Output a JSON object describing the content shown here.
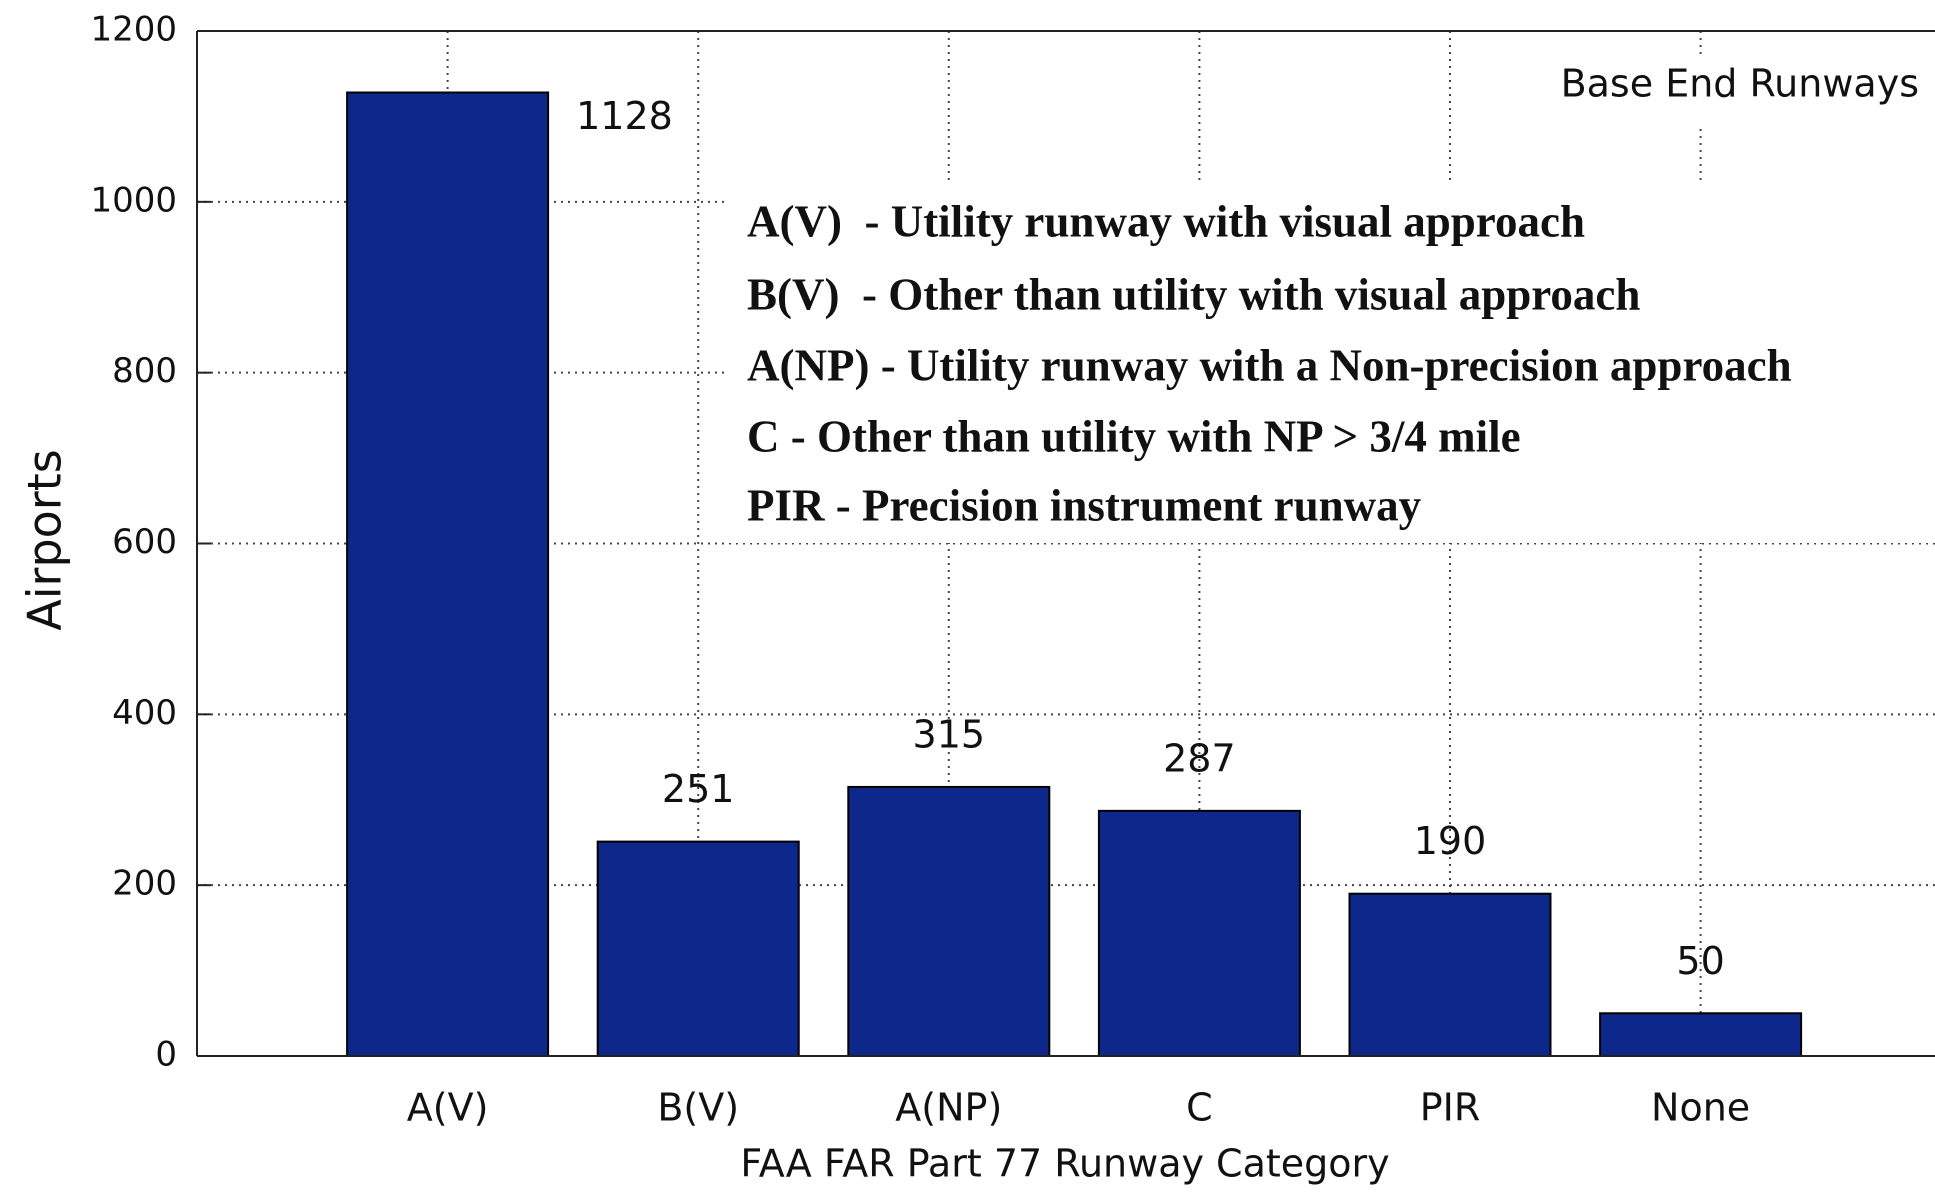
{
  "chart_data": {
    "type": "bar",
    "categories": [
      "A(V)",
      "B(V)",
      "A(NP)",
      "C",
      "PIR",
      "None"
    ],
    "values": [
      1128,
      251,
      315,
      287,
      190,
      50
    ],
    "color": "#0d288a",
    "ylim": [
      0,
      1200
    ],
    "yticks": [
      0,
      200,
      400,
      600,
      800,
      1000,
      1200
    ],
    "grid": true,
    "xlabel": "FAA FAR Part 77 Runway Category",
    "ylabel": "Airports",
    "annotation": "Base End Runways",
    "notes": [
      "A(V)  - Utility runway with visual approach",
      "B(V)  - Other than utility with visual approach",
      "A(NP) - Utility runway with a Non-precision approach",
      "C - Other than utility with NP > 3/4 mile",
      "PIR - Precision instrument runway"
    ]
  }
}
